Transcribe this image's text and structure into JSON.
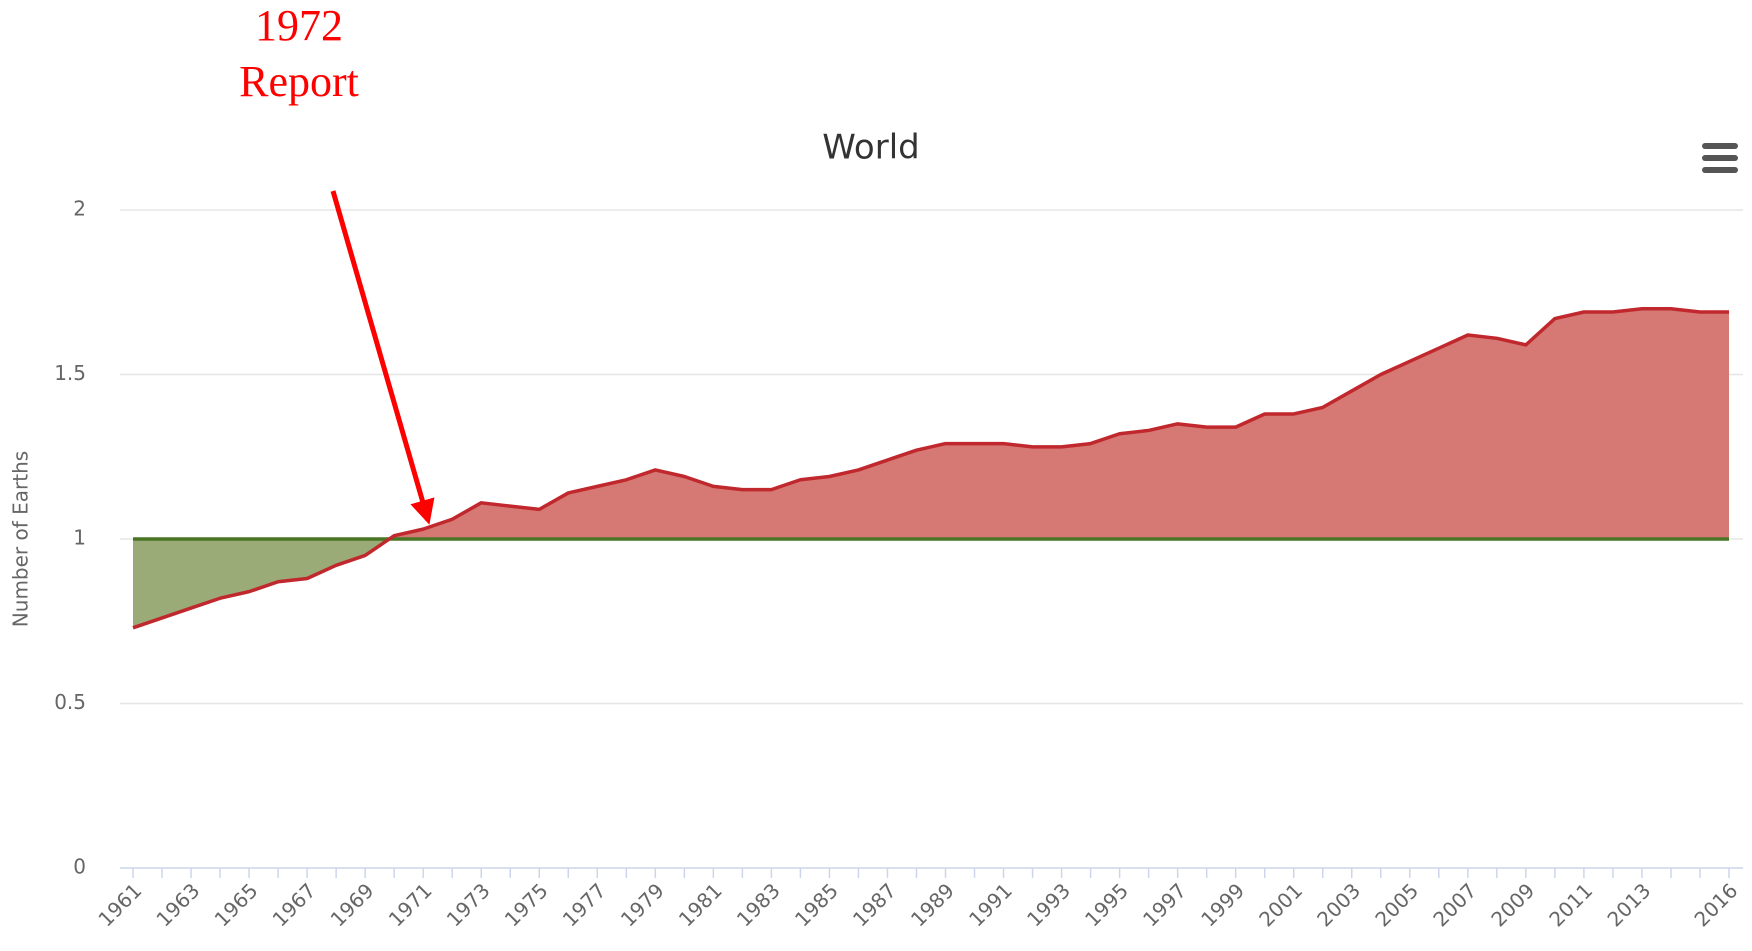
{
  "chart_data": {
    "type": "area",
    "title": "World",
    "y_label": "Number of Earths",
    "annotation": [
      "1972",
      "Report"
    ],
    "categories": [
      "1961",
      null,
      "1963",
      null,
      "1965",
      null,
      "1967",
      null,
      "1969",
      null,
      "1971",
      null,
      "1973",
      null,
      "1975",
      null,
      "1977",
      null,
      "1979",
      null,
      "1981",
      null,
      "1983",
      null,
      "1985",
      null,
      "1987",
      null,
      "1989",
      null,
      "1991",
      null,
      "1993",
      null,
      "1995",
      null,
      "1997",
      null,
      "1999",
      null,
      "2001",
      null,
      "2003",
      null,
      "2005",
      null,
      "2007",
      null,
      "2009",
      null,
      "2011",
      null,
      "2013",
      null,
      null,
      "2016"
    ],
    "values": [
      0.73,
      0.76,
      0.79,
      0.82,
      0.84,
      0.87,
      0.88,
      0.92,
      0.95,
      1.01,
      1.03,
      1.06,
      1.11,
      1.1,
      1.09,
      1.14,
      1.16,
      1.18,
      1.21,
      1.19,
      1.16,
      1.15,
      1.15,
      1.18,
      1.19,
      1.21,
      1.24,
      1.27,
      1.29,
      1.29,
      1.29,
      1.28,
      1.28,
      1.29,
      1.32,
      1.33,
      1.35,
      1.34,
      1.34,
      1.38,
      1.38,
      1.4,
      1.45,
      1.5,
      1.54,
      1.58,
      1.62,
      1.61,
      1.59,
      1.67,
      1.69,
      1.69,
      1.7,
      1.7,
      1.69,
      1.69
    ],
    "color": "#c0282d",
    "above_color": "#d67873",
    "baseline": 1,
    "baseline_color": "#4a7524",
    "below_color": "#9aab78",
    "ylim": [
      0,
      2
    ],
    "yticks": [
      0,
      0.5,
      1,
      1.5,
      2
    ],
    "grid": true
  }
}
